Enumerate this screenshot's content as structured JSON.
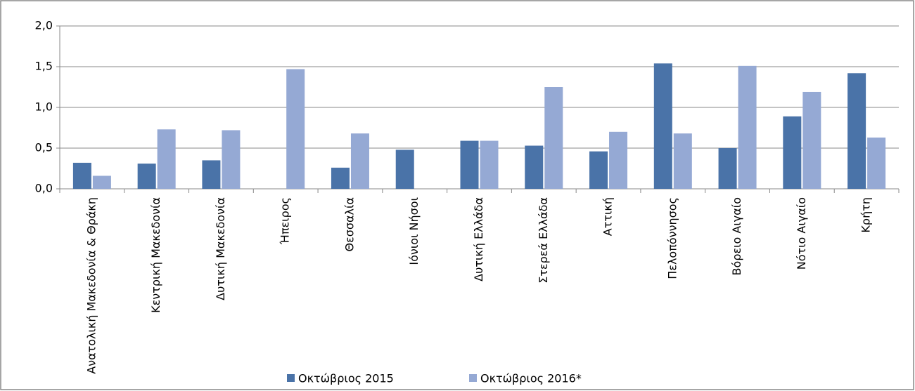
{
  "chart_data": {
    "type": "bar",
    "categories": [
      "Ανατολική Μακεδονία & Θράκη",
      "Κεντρική Μακεδονία",
      "Δυτική Μακεδονία",
      "Ήπειρος",
      "Θεσσαλία",
      "Ιόνιοι Νήσοι",
      "Δυτική Ελλάδα",
      "Στερεά Ελλάδα",
      "Αττική",
      "Πελοπόννησος",
      "Βόρειο Αιγαίο",
      "Νότιο Αιγαίο",
      "Κρήτη"
    ],
    "series": [
      {
        "name": "Οκτώβριος 2015",
        "color": "#4a73a8",
        "values": [
          0.32,
          0.31,
          0.35,
          null,
          0.26,
          0.48,
          0.59,
          0.53,
          0.46,
          1.54,
          0.5,
          0.89,
          1.42
        ]
      },
      {
        "name": "Οκτώβριος 2016*",
        "color": "#95a9d4",
        "values": [
          0.16,
          0.73,
          0.72,
          1.47,
          0.68,
          null,
          0.59,
          1.25,
          0.7,
          0.68,
          1.51,
          1.19,
          0.63
        ]
      }
    ],
    "ylim": [
      0,
      2
    ],
    "yticks": [
      {
        "value": 0,
        "label": "0,0"
      },
      {
        "value": 0.5,
        "label": "0,5"
      },
      {
        "value": 1,
        "label": "1,0"
      },
      {
        "value": 1.5,
        "label": "1,5"
      },
      {
        "value": 2,
        "label": "2,0"
      }
    ],
    "grid": true,
    "legend": "bottom"
  }
}
